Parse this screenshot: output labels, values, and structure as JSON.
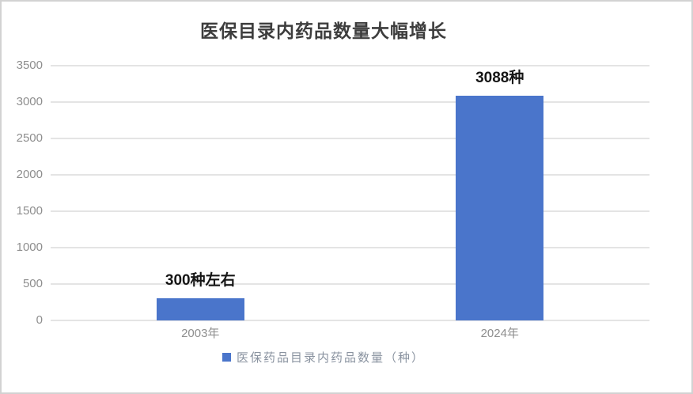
{
  "title": "医保目录内药品数量大幅增长",
  "legend": {
    "label": "医保药品目录内药品数量（种）",
    "marker_color": "#4a75cb"
  },
  "colors": {
    "bar": "#4a75cb",
    "gridline": "#e4e4e4",
    "axis_text": "#8e8e8e",
    "title_text": "#3d3d3d"
  },
  "chart_data": {
    "type": "bar",
    "title": "医保目录内药品数量大幅增长",
    "categories": [
      "2003年",
      "2024年"
    ],
    "series": [
      {
        "name": "医保药品目录内药品数量（种）",
        "values": [
          300,
          3088
        ]
      }
    ],
    "data_labels": [
      "300种左右",
      "3088种"
    ],
    "ylabel": "",
    "xlabel": "",
    "ylim": [
      0,
      3500
    ],
    "yticks": [
      0,
      500,
      1000,
      1500,
      2000,
      2500,
      3000,
      3500
    ],
    "grid": "horizontal",
    "legend_position": "bottom",
    "bar_color": "#4a75cb"
  }
}
